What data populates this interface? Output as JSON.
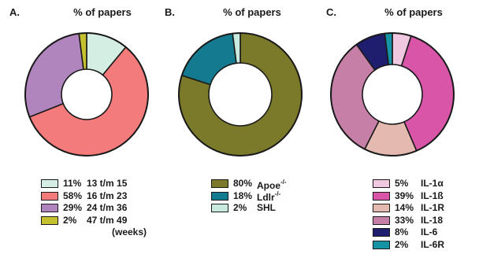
{
  "chart_data": [
    {
      "type": "pie",
      "panel": "A.",
      "title": "% of papers",
      "slices": [
        {
          "pct": "11%",
          "label": "13 t/m 15",
          "value": 11,
          "color": "#d4eee4"
        },
        {
          "pct": "58%",
          "label": "16 t/m 23",
          "value": 58,
          "color": "#f47b7b"
        },
        {
          "pct": "29%",
          "label": "24 t/m 36",
          "value": 29,
          "color": "#b085be"
        },
        {
          "pct": "2%",
          "label": "47 t/m 49",
          "value": 2,
          "color": "#c4c02f"
        }
      ],
      "units": "(weeks)"
    },
    {
      "type": "pie",
      "panel": "B.",
      "title": "% of papers",
      "slices": [
        {
          "pct": "80%",
          "label": "Apoe",
          "sup": "-/-",
          "value": 80,
          "color": "#7b7a2b"
        },
        {
          "pct": "18%",
          "label": "Ldlr",
          "sup": "-/-",
          "value": 18,
          "color": "#137a90"
        },
        {
          "pct": "2%",
          "label": "SHL",
          "sup": "",
          "value": 2,
          "color": "#c9eadf"
        }
      ]
    },
    {
      "type": "pie",
      "panel": "C.",
      "title": "% of papers",
      "slices": [
        {
          "pct": "5%",
          "label": "IL-1α",
          "value": 5,
          "color": "#f0c8e0"
        },
        {
          "pct": "39%",
          "label": "IL-1ß",
          "value": 39,
          "color": "#d955a8"
        },
        {
          "pct": "14%",
          "label": "IL-1R",
          "value": 14,
          "color": "#e3b9b0"
        },
        {
          "pct": "33%",
          "label": "IL-18",
          "value": 33,
          "color": "#c67fa6"
        },
        {
          "pct": "8%",
          "label": "IL-6",
          "value": 8,
          "color": "#1f1d6e"
        },
        {
          "pct": "2%",
          "label": "IL-6R",
          "value": 2,
          "color": "#1694a6"
        }
      ]
    }
  ]
}
